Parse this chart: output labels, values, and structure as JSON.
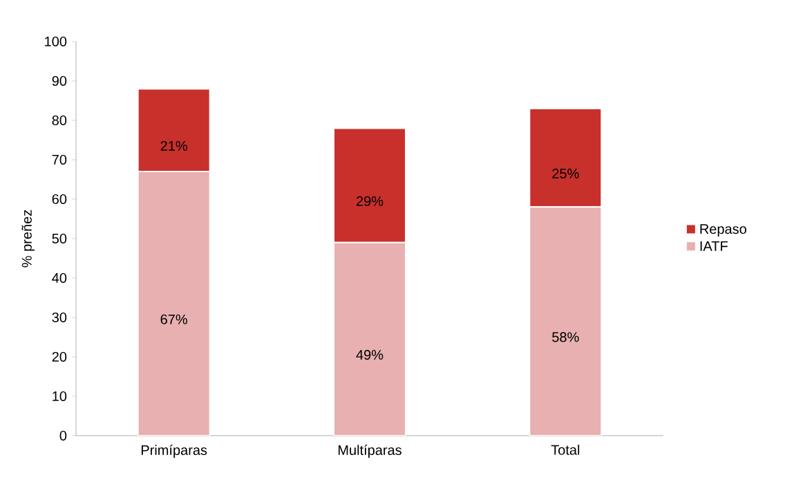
{
  "chart_data": {
    "type": "bar",
    "stacked": true,
    "ylabel": "% preñez",
    "categories": [
      "Primíparas",
      "Multíparas",
      "Total"
    ],
    "series": [
      {
        "name": "IATF",
        "color": "#e8b0b0",
        "values": [
          67,
          49,
          58
        ],
        "value_labels": [
          "67%",
          "49%",
          "58%"
        ]
      },
      {
        "name": "Repaso",
        "color": "#c8302c",
        "values": [
          21,
          29,
          25
        ],
        "value_labels": [
          "21%",
          "29%",
          "25%"
        ]
      }
    ],
    "ylim": [
      0,
      100
    ],
    "yticks": [
      0,
      10,
      20,
      30,
      40,
      50,
      60,
      70,
      80,
      90,
      100
    ],
    "legend": "right"
  }
}
